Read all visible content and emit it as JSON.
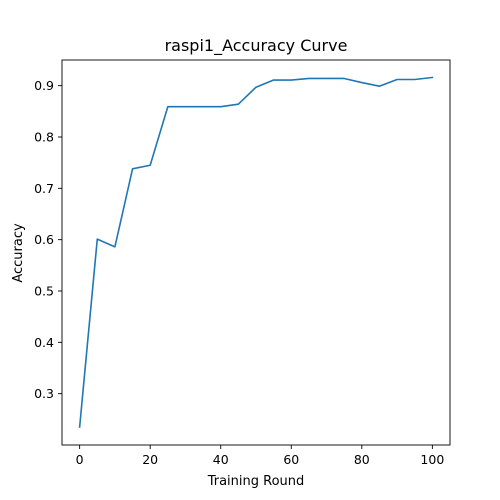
{
  "chart_data": {
    "type": "line",
    "title": "raspi1_Accuracy Curve",
    "xlabel": "Training Round",
    "ylabel": "Accuracy",
    "xlim": [
      -5,
      105
    ],
    "ylim": [
      0.2,
      0.95
    ],
    "xticks": [
      0,
      20,
      40,
      60,
      80,
      100
    ],
    "yticks": [
      0.3,
      0.4,
      0.5,
      0.6,
      0.7,
      0.8,
      0.9
    ],
    "ytick_labels": [
      "0.3",
      "0.4",
      "0.5",
      "0.6",
      "0.7",
      "0.8",
      "0.9"
    ],
    "grid": false,
    "series": [
      {
        "color": "#1f77b4",
        "x": [
          0,
          5,
          10,
          15,
          20,
          25,
          30,
          35,
          40,
          45,
          50,
          55,
          60,
          65,
          70,
          75,
          80,
          85,
          90,
          95,
          100
        ],
        "y": [
          0.235,
          0.601,
          0.586,
          0.738,
          0.745,
          0.859,
          0.859,
          0.859,
          0.859,
          0.864,
          0.897,
          0.911,
          0.911,
          0.914,
          0.914,
          0.914,
          0.906,
          0.899,
          0.912,
          0.912,
          0.916
        ]
      }
    ]
  }
}
